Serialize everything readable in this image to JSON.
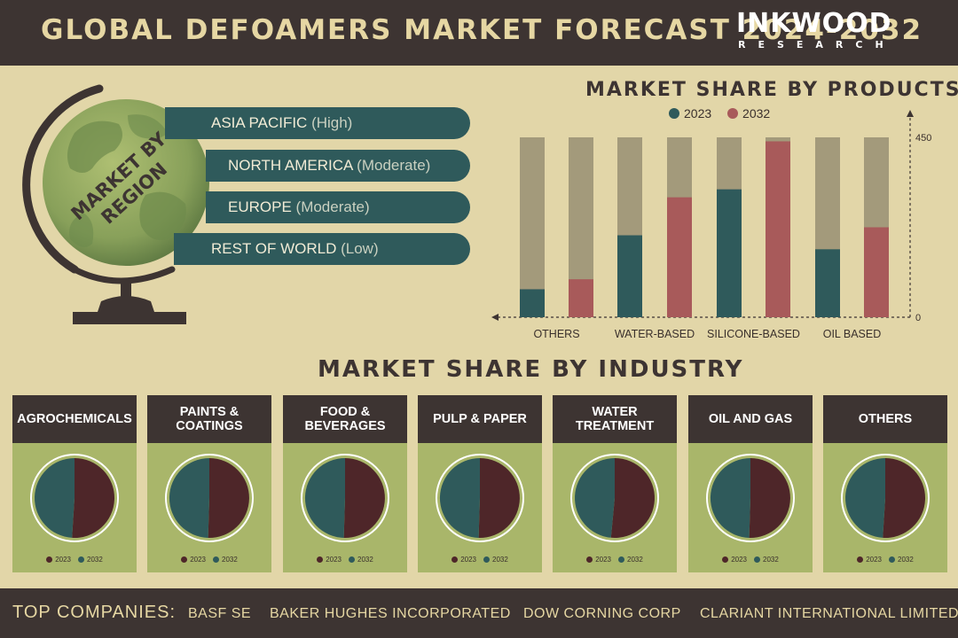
{
  "header": {
    "title": "GLOBAL DEFOAMERS MARKET FORECAST 2024-2032"
  },
  "logo": {
    "name": "INKWOOD",
    "tagline": "RESEARCH"
  },
  "region": {
    "globe_label": [
      "MARKET BY",
      "REGION"
    ],
    "items": [
      {
        "name": "ASIA PACIFIC",
        "level": "(High)"
      },
      {
        "name": "NORTH AMERICA",
        "level": "(Moderate)"
      },
      {
        "name": "EUROPE",
        "level": "(Moderate)"
      },
      {
        "name": "REST OF WORLD",
        "level": "(Low)"
      }
    ]
  },
  "products": {
    "title": "MARKET SHARE BY PRODUCTS"
  },
  "industry": {
    "title": "MARKET SHARE BY INDUSTRY"
  },
  "colors": {
    "teal": "#2f5a5b",
    "red": "#a85a5a",
    "maroon": "#4e2629",
    "dark": "#3d3432",
    "cream": "#e2d6a8",
    "olive": "#a9b66a"
  },
  "chart_data": [
    {
      "type": "bar",
      "title": "MARKET SHARE BY PRODUCTS",
      "legend": [
        "2023",
        "2032"
      ],
      "legend_position": "top",
      "categories": [
        "OTHERS",
        "WATER-BASED",
        "SILICONE-BASED",
        "OIL BASED"
      ],
      "series": [
        {
          "name": "2023",
          "color": "#2f5a5b",
          "values": [
            70,
            205,
            320,
            170
          ]
        },
        {
          "name": "2032",
          "color": "#a85a5a",
          "values": [
            95,
            300,
            440,
            225
          ]
        }
      ],
      "ylim": [
        0,
        450
      ],
      "yticks": [
        0,
        450
      ],
      "grid": false
    },
    {
      "type": "pie",
      "title": "MARKET SHARE BY INDUSTRY",
      "legend": [
        "2023",
        "2032"
      ],
      "legend_colors": [
        "#4e2629",
        "#2f5a5b"
      ],
      "pies": [
        {
          "label": "AGROCHEMICALS",
          "slices": [
            51.0,
            49.0
          ]
        },
        {
          "label": "PAINTS & COATINGS",
          "slices": [
            50.5,
            49.5
          ]
        },
        {
          "label": "FOOD & BEVERAGES",
          "slices": [
            50.5,
            49.5
          ]
        },
        {
          "label": "PULP & PAPER",
          "slices": [
            50.5,
            49.5
          ]
        },
        {
          "label": "WATER TREATMENT",
          "slices": [
            51.5,
            48.5
          ]
        },
        {
          "label": "OIL AND GAS",
          "slices": [
            50.5,
            49.5
          ]
        },
        {
          "label": "OTHERS",
          "slices": [
            51.0,
            49.0
          ]
        }
      ]
    }
  ],
  "footer": {
    "label": "TOP COMPANIES:",
    "companies": [
      "BASF SE",
      "BAKER HUGHES INCORPORATED",
      "DOW CORNING CORP",
      "CLARIANT INTERNATIONAL LIMITED"
    ]
  }
}
